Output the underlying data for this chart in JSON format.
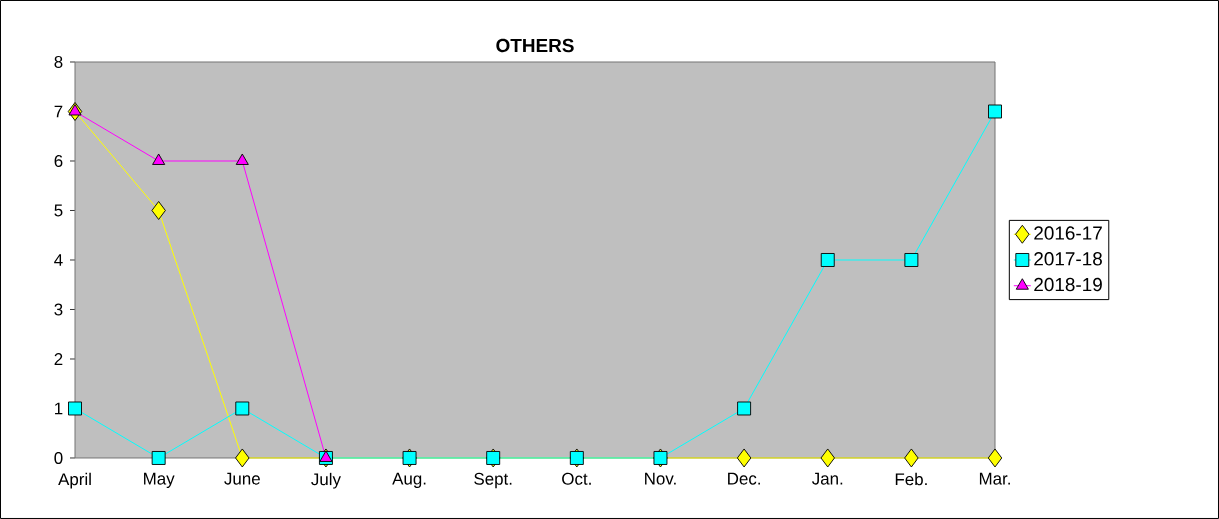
{
  "chart_data": {
    "type": "line",
    "title": "OTHERS",
    "categories": [
      "April",
      "May",
      "June",
      "July",
      "Aug.",
      "Sept.",
      "Oct.",
      "Nov.",
      "Dec.",
      "Jan.",
      "Feb.",
      "Mar."
    ],
    "series": [
      {
        "name": "2016-17",
        "color": "#ffff00",
        "marker": "diamond",
        "values": [
          7,
          5,
          0,
          0,
          0,
          0,
          0,
          0,
          0,
          0,
          0,
          0
        ]
      },
      {
        "name": "2017-18",
        "color": "#00ffff",
        "marker": "square",
        "values": [
          1,
          0,
          1,
          0,
          0,
          0,
          0,
          0,
          1,
          4,
          4,
          7
        ]
      },
      {
        "name": "2018-19",
        "color": "#ff00ff",
        "marker": "triangle",
        "values": [
          7,
          6,
          6,
          0,
          null,
          null,
          null,
          null,
          null,
          null,
          null,
          null
        ]
      }
    ],
    "ylim": [
      0,
      8
    ],
    "yticks": [
      0,
      1,
      2,
      3,
      4,
      5,
      6,
      7,
      8
    ],
    "grid": false,
    "legend": "right",
    "line_style": "solid"
  }
}
